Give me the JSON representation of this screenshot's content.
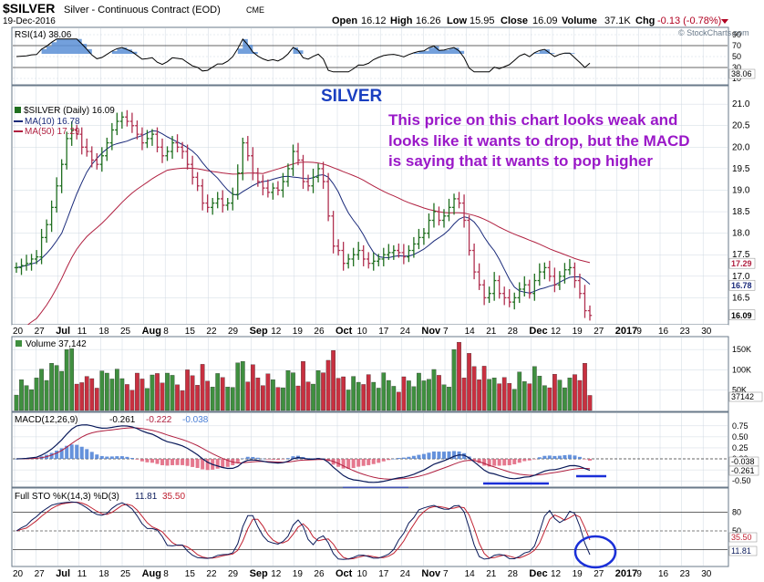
{
  "header": {
    "symbol": "$SILVER",
    "name": "Silver - Continuous Contract (EOD)",
    "exchange": "CME",
    "date": "19-Dec-2016",
    "open_label": "Open",
    "open": "16.12",
    "high_label": "High",
    "high": "16.26",
    "low_label": "Low",
    "low": "15.95",
    "close_label": "Close",
    "close": "16.09",
    "volume_label": "Volume",
    "volume": "37.1K",
    "chg_label": "Chg",
    "chg": "-0.13 (-0.78%)",
    "watermark": "© StockCharts.com"
  },
  "colors": {
    "background": "#ffffff",
    "panel_header": "#dfe6ee",
    "grid": "#cfd8e2",
    "up": "#1f6f1f",
    "down": "#b03050",
    "ma10": "#1a2a7a",
    "ma50": "#b02040",
    "rsi_fill": "#5b8fd6",
    "macd_hist_pos": "#4a7fd6",
    "macd_hist_neg": "#e0607a",
    "volume_up": "#3f8f3f",
    "volume_down": "#c83040",
    "title": "#1a3fc0",
    "annotation": "#9a18c8",
    "markup": "#1a2fd8"
  },
  "rsi_panel": {
    "legend": "RSI(14) 38.06",
    "ticks": [
      "90",
      "70",
      "50",
      "30",
      "10"
    ],
    "last_value": "38.06",
    "overbought": 70,
    "oversold": 30
  },
  "price_panel": {
    "title": "SILVER",
    "legend_symbol": "$SILVER (Daily) 16.09",
    "legend_ma10": "MA(10) 16.78",
    "legend_ma50": "MA(50) 17.29",
    "annotation": [
      "This price on this chart looks weak and",
      "looks like it wants to drop, but the MACD",
      "is saying that it wants to pop higher"
    ],
    "ticks": [
      "21.0",
      "20.5",
      "20.0",
      "19.5",
      "19.0",
      "18.5",
      "18.0",
      "17.5",
      "17.0",
      "16.5"
    ],
    "labels": [
      {
        "text": "17.29",
        "value": 17.29,
        "color": "#b02040",
        "bg": "#ffffff"
      },
      {
        "text": "16.78",
        "value": 16.78,
        "color": "#1a2a7a",
        "bg": "#ffffff"
      },
      {
        "text": "16.09",
        "value": 16.09,
        "color": "#000000",
        "bg": "#ffffff"
      }
    ]
  },
  "x_axis": {
    "labels": [
      {
        "text": "20",
        "bold": false
      },
      {
        "text": "27",
        "bold": false
      },
      {
        "text": "Jul",
        "bold": true
      },
      {
        "text": "11",
        "bold": false
      },
      {
        "text": "18",
        "bold": false
      },
      {
        "text": "25",
        "bold": false
      },
      {
        "text": "Aug",
        "bold": true
      },
      {
        "text": "8",
        "bold": false
      },
      {
        "text": "15",
        "bold": false
      },
      {
        "text": "22",
        "bold": false
      },
      {
        "text": "29",
        "bold": false
      },
      {
        "text": "Sep",
        "bold": true
      },
      {
        "text": "12",
        "bold": false
      },
      {
        "text": "19",
        "bold": false
      },
      {
        "text": "26",
        "bold": false
      },
      {
        "text": "Oct",
        "bold": true
      },
      {
        "text": "10",
        "bold": false
      },
      {
        "text": "17",
        "bold": false
      },
      {
        "text": "24",
        "bold": false
      },
      {
        "text": "Nov",
        "bold": true
      },
      {
        "text": "7",
        "bold": false
      },
      {
        "text": "14",
        "bold": false
      },
      {
        "text": "21",
        "bold": false
      },
      {
        "text": "28",
        "bold": false
      },
      {
        "text": "Dec",
        "bold": true
      },
      {
        "text": "12",
        "bold": false
      },
      {
        "text": "19",
        "bold": false
      },
      {
        "text": "27",
        "bold": false
      },
      {
        "text": "2017",
        "bold": true
      },
      {
        "text": "9",
        "bold": false
      },
      {
        "text": "16",
        "bold": false
      },
      {
        "text": "23",
        "bold": false
      },
      {
        "text": "30",
        "bold": false
      }
    ]
  },
  "volume_panel": {
    "legend": "Volume 37,142",
    "ticks": [
      "150K",
      "100K",
      "50K"
    ],
    "last_value": "37142"
  },
  "macd_panel": {
    "legend_prefix": "MACD(12,26,9)",
    "macd": "-0.261",
    "signal": "-0.222",
    "histogram": "-0.038",
    "ticks": [
      "0.75",
      "0.50",
      "0.25",
      "0.00",
      "-0.25",
      "-0.50"
    ],
    "last_hist": "-0.038",
    "last_macd": "-0.261"
  },
  "sto_panel": {
    "legend_prefix": "Full STO %K(14,3) %D(3)",
    "k": "11.81",
    "d": "35.50",
    "ticks": [
      "80",
      "50",
      "20"
    ],
    "last_d": "35.50",
    "last_k": "11.81"
  },
  "chart_data": {
    "type": "candlestick",
    "title": "SILVER",
    "x_period": "2016-06-20 to 2016-12-19 (daily)",
    "ohlc_close": [
      17.2,
      17.25,
      17.3,
      17.4,
      17.45,
      17.9,
      18.2,
      18.6,
      19.1,
      19.6,
      20.2,
      20.4,
      20.3,
      20.0,
      19.9,
      19.7,
      19.6,
      19.8,
      20.1,
      20.4,
      20.6,
      20.7,
      20.6,
      20.5,
      20.3,
      20.1,
      20.2,
      20.3,
      20.0,
      19.8,
      19.9,
      20.1,
      20.0,
      19.9,
      19.6,
      19.3,
      19.1,
      18.7,
      18.6,
      18.7,
      18.8,
      18.65,
      18.7,
      18.9,
      19.4,
      20.1,
      19.8,
      19.4,
      19.2,
      19.05,
      18.95,
      19.05,
      19.0,
      19.2,
      19.5,
      19.9,
      19.7,
      19.2,
      19.1,
      19.3,
      19.5,
      19.2,
      18.4,
      17.7,
      17.6,
      17.3,
      17.4,
      17.5,
      17.6,
      17.4,
      17.3,
      17.35,
      17.4,
      17.5,
      17.55,
      17.6,
      17.55,
      17.45,
      17.6,
      17.75,
      17.9,
      18.0,
      18.3,
      18.5,
      18.3,
      18.4,
      18.6,
      18.8,
      18.7,
      18.3,
      17.6,
      17.1,
      16.8,
      16.5,
      16.6,
      16.9,
      16.6,
      16.5,
      16.4,
      16.5,
      16.7,
      16.8,
      16.6,
      16.9,
      17.1,
      17.2,
      17.0,
      16.8,
      17.0,
      17.15,
      17.2,
      16.9,
      16.6,
      16.2,
      16.09
    ],
    "ma10_last": 16.78,
    "ma50_last": 17.29,
    "volume_last": 37142,
    "rsi_last": 38.06,
    "macd": {
      "macd": -0.261,
      "signal": -0.222,
      "histogram": -0.038
    },
    "full_sto": {
      "k": 11.81,
      "d": 35.5
    },
    "price_range": [
      16.0,
      21.3
    ]
  }
}
